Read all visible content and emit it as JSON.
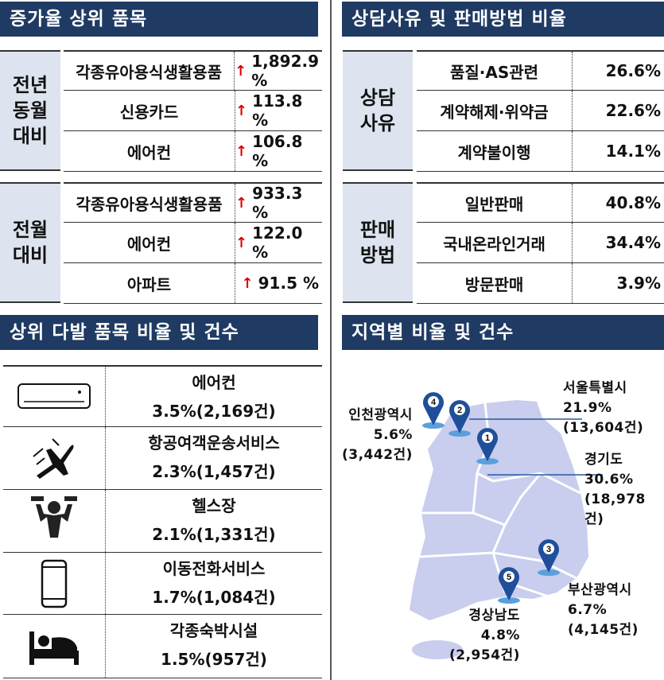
{
  "sections": {
    "increase_title": "증가율 상위 품목",
    "reason_title": "상담사유 및 판매방법 비율",
    "top_items_title": "상위 다발 품목 비율 및 건수",
    "region_title": "지역별 비율 및 건수"
  },
  "increase": [
    {
      "group": "전년\n동월\n대비",
      "rows": [
        {
          "item": "각종유아용식생활용품",
          "value": "1,892.9 %"
        },
        {
          "item": "신용카드",
          "value": "113.8 %"
        },
        {
          "item": "에어컨",
          "value": "106.8 %"
        }
      ]
    },
    {
      "group": "전월\n대비",
      "rows": [
        {
          "item": "각종유아용식생활용품",
          "value": "933.3 %"
        },
        {
          "item": "에어컨",
          "value": "122.0 %"
        },
        {
          "item": "아파트",
          "value": "91.5 %"
        }
      ]
    }
  ],
  "up_arrow": "↑",
  "reasons": [
    {
      "group": "상담\n사유",
      "rows": [
        {
          "item": "품질·AS관련",
          "value": "26.6%"
        },
        {
          "item": "계약해제·위약금",
          "value": "22.6%"
        },
        {
          "item": "계약불이행",
          "value": "14.1%"
        }
      ]
    },
    {
      "group": "판매\n방법",
      "rows": [
        {
          "item": "일반판매",
          "value": "40.8%"
        },
        {
          "item": "국내온라인거래",
          "value": "34.4%"
        },
        {
          "item": "방문판매",
          "value": "3.9%"
        }
      ]
    }
  ],
  "top_items": [
    {
      "icon": "air-conditioner-icon",
      "name": "에어컨",
      "stat": "3.5%(2,169건)"
    },
    {
      "icon": "airplane-icon",
      "name": "항공여객운송서비스",
      "stat": "2.3%(1,457건)"
    },
    {
      "icon": "gym-icon",
      "name": "헬스장",
      "stat": "2.1%(1,331건)"
    },
    {
      "icon": "smartphone-icon",
      "name": "이동전화서비스",
      "stat": "1.7%(1,084건)"
    },
    {
      "icon": "bed-icon",
      "name": "각종숙박시설",
      "stat": "1.5%(957건)"
    }
  ],
  "regions": [
    {
      "rank": "1",
      "name": "경기도",
      "pct": "30.6%",
      "count": "(18,978건)"
    },
    {
      "rank": "2",
      "name": "서울특별시",
      "pct": "21.9%",
      "count": "(13,604건)"
    },
    {
      "rank": "3",
      "name": "부산광역시",
      "pct": "6.7%",
      "count": "(4,145건)"
    },
    {
      "rank": "4",
      "name": "인천광역시",
      "pct": "5.6%",
      "count": "(3,442건)"
    },
    {
      "rank": "5",
      "name": "경상남도",
      "pct": "4.8%",
      "count": "(2,954건)"
    }
  ],
  "colors": {
    "header": "#1f3b63",
    "label_bg": "#dde4ef",
    "up_arrow": "#dd0000",
    "map": "#c9cdee",
    "pin": "#1f4f9a"
  }
}
